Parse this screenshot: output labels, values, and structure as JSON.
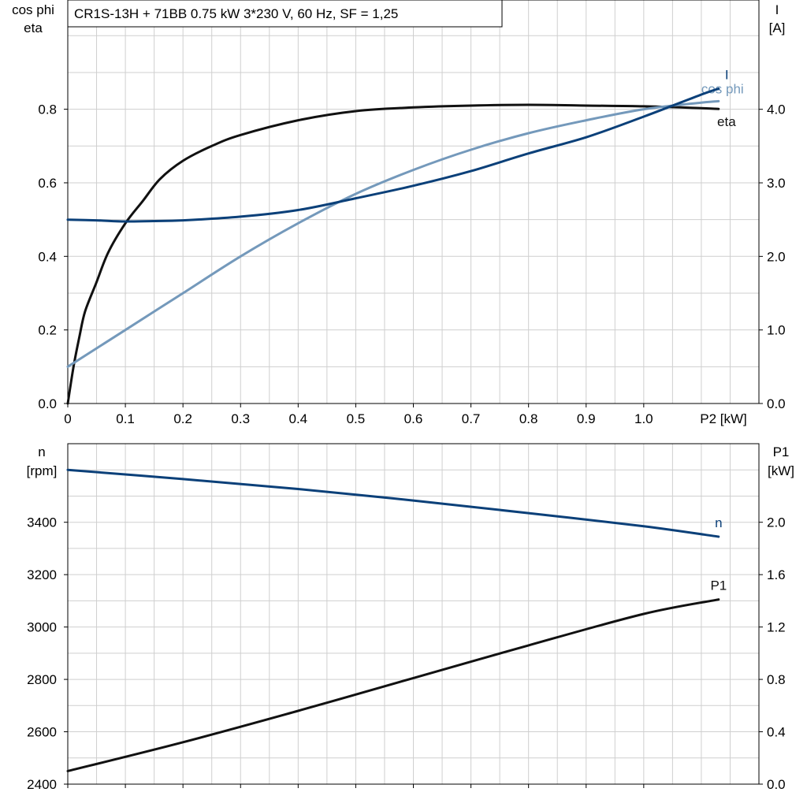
{
  "title": "CR1S-13H + 71BB   0.75 kW   3*230 V, 60 Hz, SF = 1,25",
  "colors": {
    "black": "#111111",
    "dark_blue": "#0b4079",
    "light_blue": "#7499bb"
  },
  "chart_data": [
    {
      "type": "line",
      "name": "top",
      "left_axis_label": [
        "cos phi",
        "eta"
      ],
      "right_axis_label": [
        "I",
        "[A]"
      ],
      "xlabel": "P2 [kW]",
      "xlim": [
        0,
        1.2
      ],
      "ylim_left": [
        0,
        0.8
      ],
      "ylim_right": [
        0,
        4.0
      ],
      "x_ticks": [
        "0",
        "0.1",
        "0.2",
        "0.3",
        "0.4",
        "0.5",
        "0.6",
        "0.7",
        "0.8",
        "0.9",
        "1.0"
      ],
      "x_tick_values": [
        0,
        0.1,
        0.2,
        0.3,
        0.4,
        0.5,
        0.6,
        0.7,
        0.8,
        0.9,
        1.0
      ],
      "y_left_ticks": [
        "0.0",
        "0.2",
        "0.4",
        "0.6",
        "0.8"
      ],
      "y_left_values": [
        0,
        0.2,
        0.4,
        0.6,
        0.8
      ],
      "y_right_ticks": [
        "0.0",
        "1.0",
        "2.0",
        "3.0",
        "4.0"
      ],
      "y_right_values": [
        0,
        1,
        2,
        3,
        4
      ],
      "series": [
        {
          "label": "eta",
          "axis": "left",
          "color": "#111111",
          "x": [
            0,
            0.01,
            0.02,
            0.03,
            0.05,
            0.07,
            0.1,
            0.13,
            0.16,
            0.2,
            0.25,
            0.3,
            0.4,
            0.5,
            0.6,
            0.7,
            0.8,
            0.9,
            1.0,
            1.1,
            1.13
          ],
          "y": [
            0,
            0.1,
            0.18,
            0.25,
            0.33,
            0.41,
            0.49,
            0.55,
            0.61,
            0.66,
            0.7,
            0.73,
            0.77,
            0.795,
            0.805,
            0.81,
            0.812,
            0.81,
            0.808,
            0.803,
            0.801
          ]
        },
        {
          "label": "cos phi",
          "axis": "left",
          "color": "#7499bb",
          "x": [
            0,
            0.1,
            0.2,
            0.3,
            0.4,
            0.5,
            0.6,
            0.7,
            0.8,
            0.9,
            1.0,
            1.1,
            1.13
          ],
          "y": [
            0.1,
            0.2,
            0.3,
            0.4,
            0.49,
            0.57,
            0.635,
            0.69,
            0.735,
            0.77,
            0.8,
            0.818,
            0.822
          ]
        },
        {
          "label": "I",
          "axis": "right",
          "color": "#0b4079",
          "x": [
            0,
            0.05,
            0.1,
            0.15,
            0.2,
            0.3,
            0.4,
            0.5,
            0.6,
            0.7,
            0.8,
            0.9,
            1.0,
            1.1,
            1.13
          ],
          "y": [
            2.5,
            2.49,
            2.475,
            2.48,
            2.49,
            2.54,
            2.63,
            2.79,
            2.96,
            3.16,
            3.4,
            3.62,
            3.9,
            4.2,
            4.28
          ]
        }
      ]
    },
    {
      "type": "line",
      "name": "bottom",
      "left_axis_label": [
        "n",
        "[rpm]"
      ],
      "right_axis_label": [
        "P1",
        "[kW]"
      ],
      "xlim": [
        0,
        1.2
      ],
      "ylim_left": [
        2400,
        3700
      ],
      "ylim_right": [
        0,
        2.6
      ],
      "x_tick_values": [
        0,
        0.1,
        0.2,
        0.3,
        0.4,
        0.5,
        0.6,
        0.7,
        0.8,
        0.9,
        1.0
      ],
      "y_left_ticks": [
        "2400",
        "2600",
        "2800",
        "3000",
        "3200",
        "3400"
      ],
      "y_left_values": [
        2400,
        2600,
        2800,
        3000,
        3200,
        3400
      ],
      "y_right_ticks": [
        "0.0",
        "0.4",
        "0.8",
        "1.2",
        "1.6",
        "2.0"
      ],
      "y_right_values": [
        0,
        0.4,
        0.8,
        1.2,
        1.6,
        2.0
      ],
      "series": [
        {
          "label": "n",
          "axis": "left",
          "color": "#0b4079",
          "x": [
            0,
            0.2,
            0.4,
            0.6,
            0.8,
            1.0,
            1.13
          ],
          "y": [
            3600,
            3565,
            3527,
            3483,
            3435,
            3385,
            3345
          ]
        },
        {
          "label": "P1",
          "axis": "right",
          "color": "#111111",
          "x": [
            0,
            0.2,
            0.4,
            0.6,
            0.8,
            1.0,
            1.13
          ],
          "y": [
            0.1,
            0.32,
            0.56,
            0.81,
            1.06,
            1.3,
            1.41
          ]
        }
      ]
    }
  ]
}
